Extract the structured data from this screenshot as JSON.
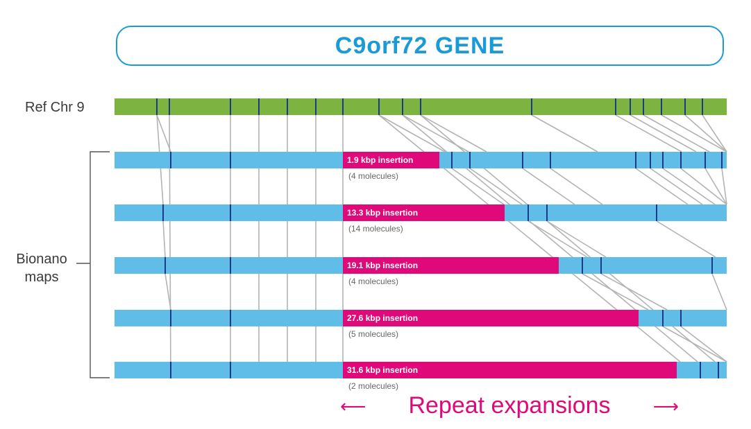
{
  "title": "C9orf72 GENE",
  "ref_label": "Ref Chr 9",
  "maps_label_line1": "Bionano",
  "maps_label_line2": "maps",
  "footer": "Repeat expansions",
  "colors": {
    "accent": "#1a9ad6",
    "ref_bar": "#7db340",
    "map_bar": "#5fbde8",
    "insertion": "#e0097a",
    "label_mark": "#1b3a8a",
    "alignment_line": "#b3b3b3"
  },
  "maps": [
    {
      "insertion_label": "1.9 kbp insertion",
      "molecules": "(4 molecules)"
    },
    {
      "insertion_label": "13.3 kbp insertion",
      "molecules": "(14 molecules)"
    },
    {
      "insertion_label": "19.1 kbp insertion",
      "molecules": "(4 molecules)"
    },
    {
      "insertion_label": "27.6 kbp insertion",
      "molecules": "(5 molecules)"
    },
    {
      "insertion_label": "31.6 kbp insertion",
      "molecules": "(2 molecules)"
    }
  ]
}
